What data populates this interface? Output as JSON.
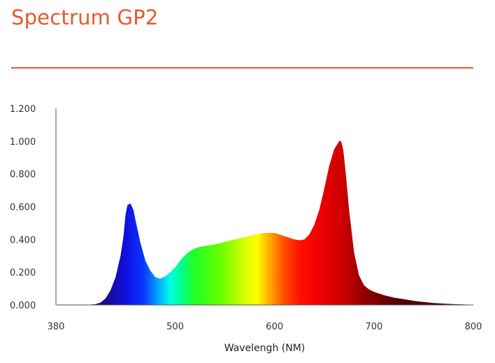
{
  "header": {
    "title": "Spectrum GP2",
    "accent_color": "#e8592a"
  },
  "chart_data": {
    "type": "area",
    "title": "Spectrum GP2",
    "xlabel": "Wavelengh (NM)",
    "ylabel": "",
    "xlim": [
      380,
      800
    ],
    "ylim": [
      0,
      1.2
    ],
    "x_tick_labels": [
      "380",
      "500",
      "600",
      "700",
      "800"
    ],
    "y_tick_labels": [
      "0.000",
      "0.200",
      "0.400",
      "0.600",
      "0.800",
      "1.000",
      "1.200"
    ],
    "grid": false,
    "legend": "none",
    "fill": "visible-spectrum color gradient",
    "series": [
      {
        "x": [
          380,
          410,
          420,
          425,
          430,
          435,
          440,
          445,
          448,
          450,
          452,
          455,
          458,
          460,
          465,
          470,
          475,
          480,
          485,
          490,
          495,
          500,
          505,
          510,
          515,
          520,
          525,
          530,
          540,
          550,
          560,
          570,
          580,
          590,
          600,
          610,
          620,
          625,
          630,
          635,
          640,
          645,
          650,
          655,
          660,
          665,
          667,
          669,
          670,
          672,
          675,
          680,
          685,
          690,
          695,
          700,
          710,
          720,
          730,
          740,
          750,
          760,
          770,
          780,
          790,
          800
        ],
        "y": [
          0.0,
          0.0,
          0.005,
          0.015,
          0.04,
          0.09,
          0.17,
          0.3,
          0.42,
          0.55,
          0.61,
          0.62,
          0.58,
          0.52,
          0.38,
          0.27,
          0.21,
          0.17,
          0.16,
          0.175,
          0.2,
          0.23,
          0.27,
          0.305,
          0.33,
          0.345,
          0.355,
          0.36,
          0.37,
          0.385,
          0.4,
          0.415,
          0.43,
          0.44,
          0.44,
          0.42,
          0.4,
          0.395,
          0.4,
          0.43,
          0.49,
          0.58,
          0.71,
          0.85,
          0.95,
          1.0,
          1.0,
          0.95,
          0.9,
          0.78,
          0.58,
          0.32,
          0.18,
          0.12,
          0.095,
          0.08,
          0.06,
          0.045,
          0.035,
          0.025,
          0.018,
          0.012,
          0.008,
          0.005,
          0.003,
          0.0
        ]
      }
    ]
  }
}
